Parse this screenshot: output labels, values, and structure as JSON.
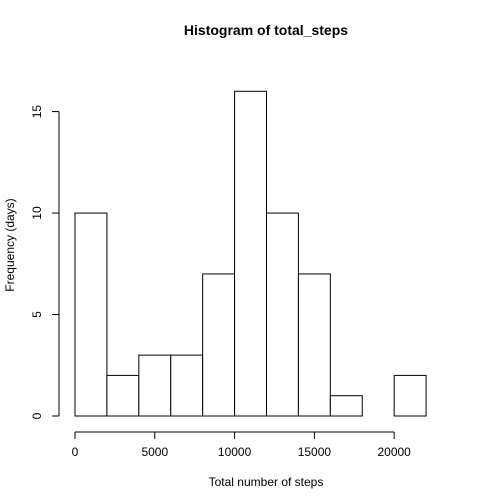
{
  "chart_data": {
    "type": "bar",
    "title": "Histogram of total_steps",
    "xlabel": "Total number of steps",
    "ylabel": "Frequency (days)",
    "bin_edges": [
      0,
      2000,
      4000,
      6000,
      8000,
      10000,
      12000,
      14000,
      16000,
      18000,
      20000,
      22000
    ],
    "values": [
      10,
      2,
      3,
      3,
      7,
      16,
      10,
      7,
      1,
      0,
      2
    ],
    "xlim": [
      0,
      24000
    ],
    "ylim": [
      0,
      17
    ],
    "xticks": [
      0,
      5000,
      10000,
      15000,
      20000
    ],
    "yticks": [
      0,
      5,
      10,
      15
    ],
    "grid": false,
    "legend": "none"
  }
}
